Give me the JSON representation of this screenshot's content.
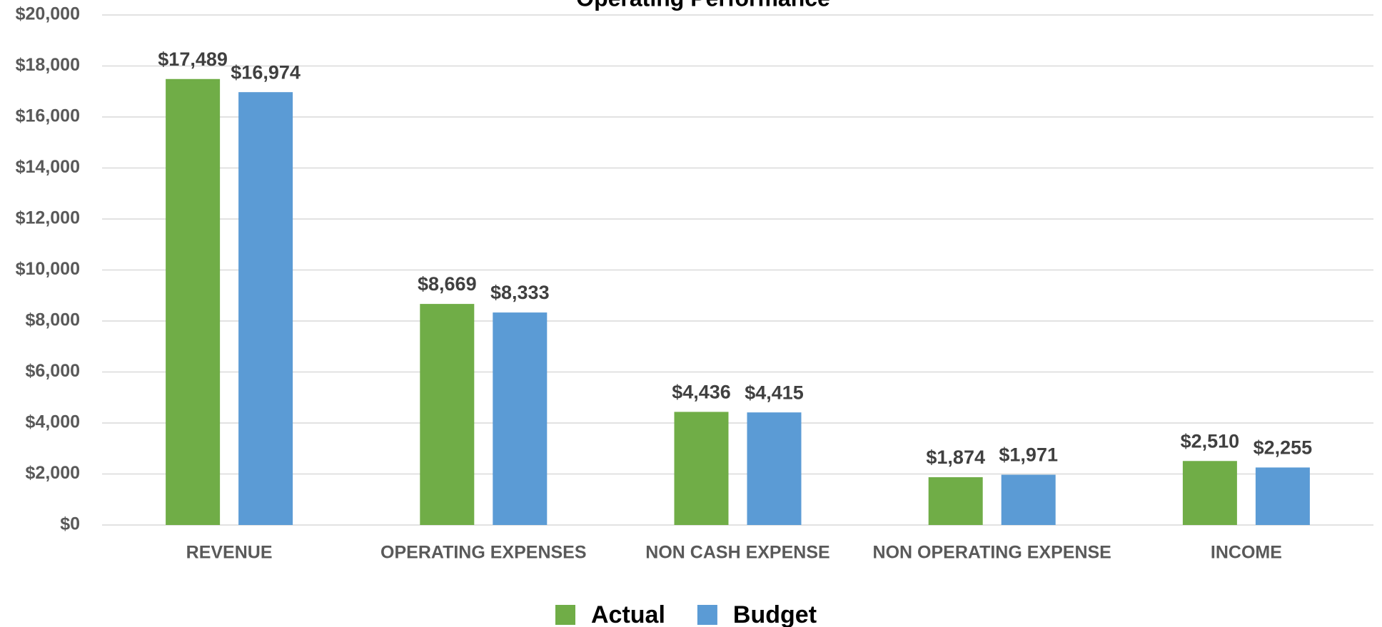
{
  "chart_data": {
    "type": "bar",
    "title": "Operating Performance",
    "categories": [
      "REVENUE",
      "OPERATING EXPENSES",
      "NON CASH EXPENSE",
      "NON OPERATING EXPENSE",
      "INCOME"
    ],
    "series": [
      {
        "name": "Actual",
        "color": "#70ad47",
        "values": [
          17489,
          8669,
          4436,
          1874,
          2510
        ],
        "value_labels": [
          "$17,489",
          "$8,669",
          "$4,436",
          "$1,874",
          "$2,510"
        ]
      },
      {
        "name": "Budget",
        "color": "#5b9bd5",
        "values": [
          16974,
          8333,
          4415,
          1971,
          2255
        ],
        "value_labels": [
          "$16,974",
          "$8,333",
          "$4,415",
          "$1,971",
          "$2,255"
        ]
      }
    ],
    "ylim": [
      0,
      20000
    ],
    "yticks": [
      {
        "value": 0,
        "label": "$0"
      },
      {
        "value": 2000,
        "label": "$2,000"
      },
      {
        "value": 4000,
        "label": "$4,000"
      },
      {
        "value": 6000,
        "label": "$6,000"
      },
      {
        "value": 8000,
        "label": "$8,000"
      },
      {
        "value": 10000,
        "label": "$10,000"
      },
      {
        "value": 12000,
        "label": "$12,000"
      },
      {
        "value": 14000,
        "label": "$14,000"
      },
      {
        "value": 16000,
        "label": "$16,000"
      },
      {
        "value": 18000,
        "label": "$18,000"
      },
      {
        "value": 20000,
        "label": "$20,000"
      }
    ],
    "grid": true,
    "legend": "bottom"
  }
}
